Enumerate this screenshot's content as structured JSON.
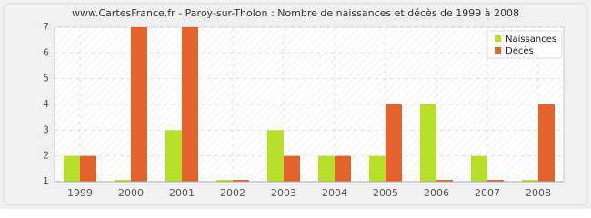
{
  "chart_data": {
    "type": "bar",
    "title": "www.CartesFrance.fr - Paroy-sur-Tholon : Nombre de naissances et décès de 1999 à 2008",
    "categories": [
      "1999",
      "2000",
      "2001",
      "2002",
      "2003",
      "2004",
      "2005",
      "2006",
      "2007",
      "2008"
    ],
    "series": [
      {
        "name": "Naissances",
        "color": "#b8e02a",
        "values": [
          2,
          1,
          3,
          1,
          3,
          2,
          2,
          4,
          2,
          1
        ]
      },
      {
        "name": "Décès",
        "color": "#e4632d",
        "values": [
          2,
          7,
          7,
          1,
          2,
          2,
          4,
          1,
          1,
          4
        ]
      }
    ],
    "ylim": [
      1,
      7
    ],
    "yticks": [
      1,
      2,
      3,
      4,
      5,
      6,
      7
    ],
    "grid": true,
    "legend": "top-right"
  }
}
